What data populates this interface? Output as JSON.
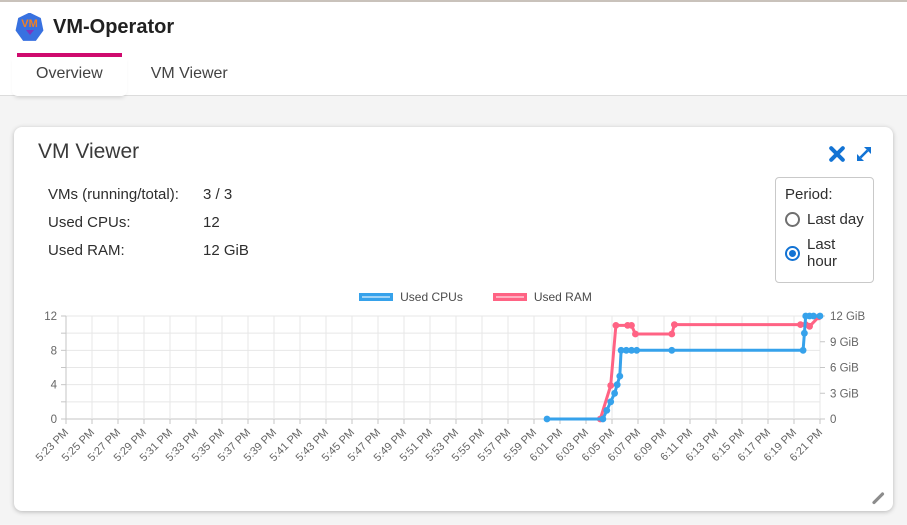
{
  "header": {
    "app_title": "VM-Operator",
    "logo_text": "VM"
  },
  "tabs": [
    {
      "label": "Overview",
      "active": true
    },
    {
      "label": "VM Viewer",
      "active": false
    }
  ],
  "panel": {
    "title": "VM Viewer",
    "stats": [
      {
        "label": "VMs (running/total):",
        "value": "3 / 3"
      },
      {
        "label": "Used CPUs:",
        "value": "12"
      },
      {
        "label": "Used RAM:",
        "value": "12 GiB"
      }
    ],
    "period": {
      "label": "Period:",
      "options": [
        {
          "label": "Last day",
          "selected": false
        },
        {
          "label": "Last hour",
          "selected": true
        }
      ]
    }
  },
  "chart_data": {
    "type": "line",
    "title": "",
    "legend_position": "top-center",
    "grid": true,
    "x_axis": {
      "tick_labels": [
        "5:23 PM",
        "5:25 PM",
        "5:27 PM",
        "5:29 PM",
        "5:31 PM",
        "5:33 PM",
        "5:35 PM",
        "5:37 PM",
        "5:39 PM",
        "5:41 PM",
        "5:43 PM",
        "5:45 PM",
        "5:47 PM",
        "5:49 PM",
        "5:51 PM",
        "5:53 PM",
        "5:55 PM",
        "5:57 PM",
        "5:59 PM",
        "6:01 PM",
        "6:03 PM",
        "6:05 PM",
        "6:07 PM",
        "6:09 PM",
        "6:11 PM",
        "6:13 PM",
        "6:15 PM",
        "6:17 PM",
        "6:19 PM",
        "6:21 PM"
      ],
      "tick_interval_minutes": 2,
      "range_minutes": [
        0,
        58
      ]
    },
    "y_left": {
      "tick_values": [
        0,
        4,
        8,
        12
      ],
      "tick_labels": [
        "0",
        "4",
        "8",
        "12"
      ],
      "range": [
        0,
        12
      ],
      "minor_step": 2
    },
    "y_right": {
      "tick_values": [
        0,
        3,
        6,
        9,
        12
      ],
      "tick_labels": [
        "0",
        "3 GiB",
        "6 GiB",
        "9 GiB",
        "12 GiB"
      ],
      "range": [
        0,
        12
      ]
    },
    "series": [
      {
        "name": "Used CPUs",
        "axis": "left",
        "color": "#36a2eb",
        "fill": "#9fd3f7",
        "points": [
          [
            37.0,
            0
          ],
          [
            41.3,
            0
          ],
          [
            41.6,
            1
          ],
          [
            41.9,
            2
          ],
          [
            42.2,
            3
          ],
          [
            42.4,
            4
          ],
          [
            42.6,
            5
          ],
          [
            42.7,
            8
          ],
          [
            43.1,
            8
          ],
          [
            43.5,
            8
          ],
          [
            43.9,
            8
          ],
          [
            46.6,
            8
          ],
          [
            56.7,
            8
          ],
          [
            56.8,
            10
          ],
          [
            56.9,
            12
          ],
          [
            57.2,
            12
          ],
          [
            57.5,
            12
          ],
          [
            58.0,
            12
          ]
        ]
      },
      {
        "name": "Used RAM",
        "axis": "right",
        "color": "#ff6384",
        "fill": "#ffb0c1",
        "points": [
          [
            41.1,
            0
          ],
          [
            41.9,
            3.9
          ],
          [
            42.3,
            10.9
          ],
          [
            43.2,
            10.9
          ],
          [
            43.5,
            10.9
          ],
          [
            43.8,
            9.9
          ],
          [
            46.6,
            9.9
          ],
          [
            46.8,
            11.0
          ],
          [
            56.5,
            11.0
          ],
          [
            56.9,
            11.0
          ],
          [
            57.2,
            10.8
          ],
          [
            57.9,
            11.9
          ]
        ]
      }
    ]
  },
  "theme": {
    "tab_indicator": "#cf0a6e",
    "icon_blue": "#1273d4",
    "axis_text": "#666666",
    "grid_line": "#e7e7e7",
    "axis_line": "#c6c6c6"
  }
}
